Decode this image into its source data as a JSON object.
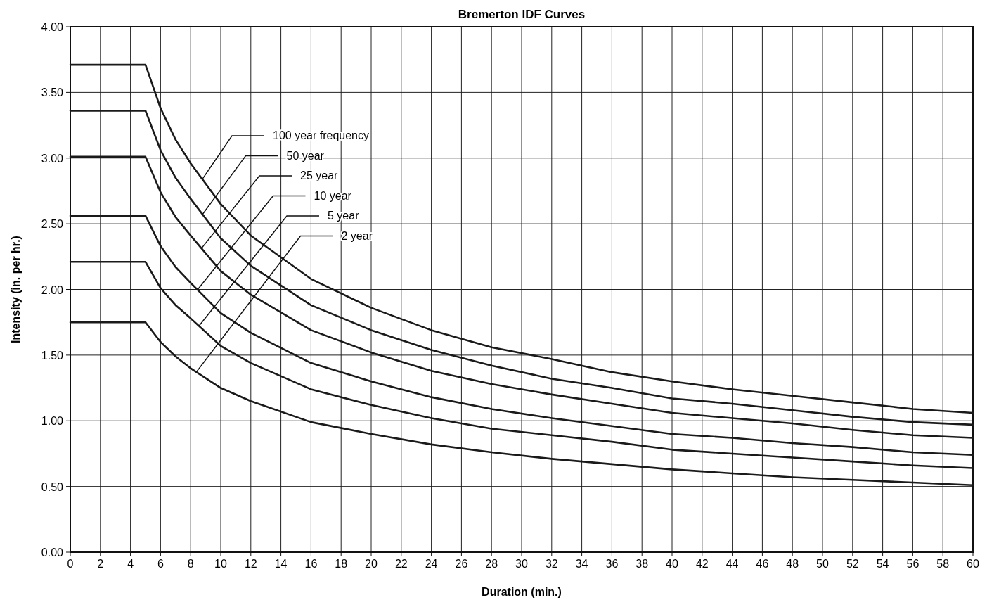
{
  "chart_data": {
    "type": "line",
    "title": "Bremerton IDF Curves",
    "xlabel": "Duration (min.)",
    "ylabel": "Intensity (in. per hr.)",
    "x": [
      0,
      5,
      6,
      7,
      8,
      10,
      12,
      16,
      20,
      24,
      28,
      32,
      36,
      40,
      44,
      48,
      52,
      56,
      60
    ],
    "series": [
      {
        "color": "#1a1a1a",
        "values": [
          3.71,
          3.71,
          3.38,
          3.14,
          2.96,
          2.65,
          2.41,
          2.08,
          1.86,
          1.69,
          1.56,
          1.47,
          1.37,
          1.3,
          1.24,
          1.19,
          1.14,
          1.09,
          1.06
        ]
      },
      {
        "color": "#1a1a1a",
        "values": [
          3.36,
          3.36,
          3.06,
          2.85,
          2.69,
          2.39,
          2.18,
          1.88,
          1.69,
          1.54,
          1.42,
          1.32,
          1.25,
          1.17,
          1.13,
          1.08,
          1.03,
          0.99,
          0.97
        ]
      },
      {
        "color": "#1a1a1a",
        "values": [
          3.01,
          3.01,
          2.74,
          2.55,
          2.41,
          2.14,
          1.96,
          1.69,
          1.52,
          1.38,
          1.28,
          1.2,
          1.13,
          1.06,
          1.02,
          0.98,
          0.93,
          0.89,
          0.87
        ]
      },
      {
        "color": "#1a1a1a",
        "values": [
          2.56,
          2.56,
          2.33,
          2.17,
          2.05,
          1.82,
          1.67,
          1.44,
          1.3,
          1.18,
          1.09,
          1.02,
          0.96,
          0.9,
          0.87,
          0.83,
          0.8,
          0.76,
          0.74
        ]
      },
      {
        "color": "#1a1a1a",
        "values": [
          2.21,
          2.21,
          2.01,
          1.88,
          1.78,
          1.57,
          1.44,
          1.24,
          1.12,
          1.02,
          0.94,
          0.89,
          0.84,
          0.78,
          0.75,
          0.72,
          0.69,
          0.66,
          0.64
        ]
      },
      {
        "color": "#1a1a1a",
        "values": [
          1.75,
          1.75,
          1.6,
          1.49,
          1.4,
          1.25,
          1.15,
          0.99,
          0.9,
          0.82,
          0.76,
          0.71,
          0.67,
          0.63,
          0.6,
          0.57,
          0.55,
          0.53,
          0.51
        ]
      }
    ],
    "annotations": [
      {
        "text": "100 year frequency",
        "x": 8.78,
        "y": 2.84
      },
      {
        "text": "50 year",
        "x": 8.78,
        "y": 2.57
      },
      {
        "text": "25 year",
        "x": 8.7,
        "y": 2.31
      },
      {
        "text": "10 year",
        "x": 8.47,
        "y": 2
      },
      {
        "text": "5 year",
        "x": 8.54,
        "y": 1.72
      },
      {
        "text": "2 year",
        "x": 8.37,
        "y": 1.37
      }
    ],
    "xlim": [
      0,
      60
    ],
    "xticks": [
      0,
      2,
      4,
      6,
      8,
      10,
      12,
      14,
      16,
      18,
      20,
      22,
      24,
      26,
      28,
      30,
      32,
      34,
      36,
      38,
      40,
      42,
      44,
      46,
      48,
      50,
      52,
      54,
      56,
      58,
      60
    ],
    "ylim": [
      0,
      4
    ],
    "yticks": [
      {
        "value": 0,
        "label": "0.00"
      },
      {
        "value": 0.5,
        "label": "0.50"
      },
      {
        "value": 1,
        "label": "1.00"
      },
      {
        "value": 1.5,
        "label": "1.50"
      },
      {
        "value": 2,
        "label": "2.00"
      },
      {
        "value": 2.5,
        "label": "2.50"
      },
      {
        "value": 3,
        "label": "3.00"
      },
      {
        "value": 3.5,
        "label": "3.50"
      },
      {
        "value": 4,
        "label": "4.00"
      }
    ],
    "grid": true,
    "marker": "none",
    "line_style": "solid"
  }
}
